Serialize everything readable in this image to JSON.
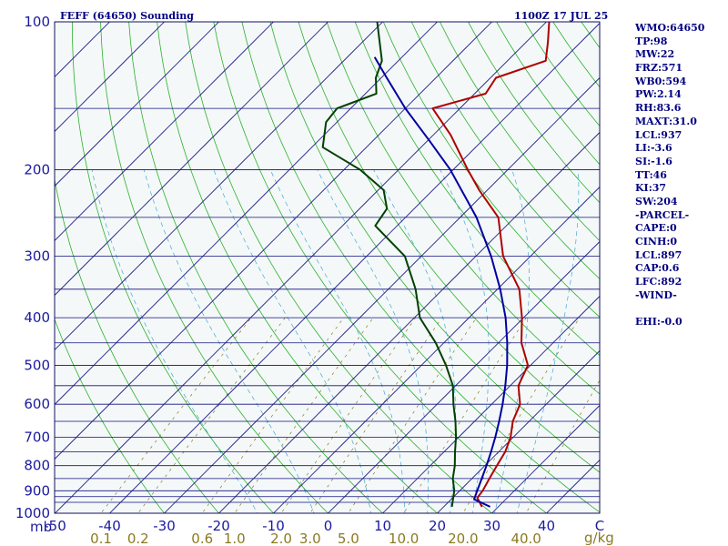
{
  "chart_data": {
    "type": "line",
    "title": "FEFF (64650) Sounding",
    "time_label": "1100Z 17 JUL 25",
    "pressure_unit": "mb",
    "mixing_ratio_unit": "g/kg",
    "pressure_levels": [
      100,
      150,
      200,
      250,
      300,
      350,
      400,
      450,
      500,
      550,
      600,
      650,
      700,
      750,
      800,
      850,
      900,
      925,
      950,
      1000
    ],
    "pressure_tick_labels": [
      "100",
      "200",
      "300",
      "400",
      "500",
      "600",
      "700",
      "800",
      "900",
      "1000"
    ],
    "temperature_ticks": [
      "-50",
      "-40",
      "-30",
      "-20",
      "-10",
      "0",
      "10",
      "20",
      "30",
      "40",
      "C"
    ],
    "mixing_ratio_ticks": [
      "0.1",
      "0.2",
      "0.6",
      "1.0",
      "2.0",
      "3.0",
      "5.0",
      "10.0",
      "20.0",
      "40.0"
    ],
    "xlim": [
      -50,
      47
    ],
    "ylim": [
      1000,
      100
    ],
    "series": [
      {
        "id": "temperature",
        "color": "#b00000",
        "points": [
          {
            "p": 970,
            "t": 27.0
          },
          {
            "p": 930,
            "t": 24.5
          },
          {
            "p": 900,
            "t": 24.2
          },
          {
            "p": 850,
            "t": 23.2
          },
          {
            "p": 800,
            "t": 22.2
          },
          {
            "p": 750,
            "t": 21.2
          },
          {
            "p": 700,
            "t": 19.5
          },
          {
            "p": 650,
            "t": 17.0
          },
          {
            "p": 600,
            "t": 15.2
          },
          {
            "p": 550,
            "t": 11.5
          },
          {
            "p": 500,
            "t": 9.5
          },
          {
            "p": 450,
            "t": 4.2
          },
          {
            "p": 400,
            "t": -0.3
          },
          {
            "p": 350,
            "t": -6.0
          },
          {
            "p": 300,
            "t": -15.0
          },
          {
            "p": 250,
            "t": -23.0
          },
          {
            "p": 220,
            "t": -31.5
          },
          {
            "p": 200,
            "t": -37.3
          },
          {
            "p": 170,
            "t": -46.8
          },
          {
            "p": 150,
            "t": -55.0
          },
          {
            "p": 140,
            "t": -48.0
          },
          {
            "p": 130,
            "t": -49.0
          },
          {
            "p": 120,
            "t": -43.0
          },
          {
            "p": 110,
            "t": -46.0
          },
          {
            "p": 100,
            "t": -49.5
          }
        ]
      },
      {
        "id": "dewpoint",
        "color": "#004000",
        "points": [
          {
            "p": 970,
            "t": 21.5
          },
          {
            "p": 900,
            "t": 19.0
          },
          {
            "p": 850,
            "t": 16.5
          },
          {
            "p": 800,
            "t": 14.5
          },
          {
            "p": 750,
            "t": 12.0
          },
          {
            "p": 700,
            "t": 9.5
          },
          {
            "p": 650,
            "t": 6.5
          },
          {
            "p": 600,
            "t": 3.0
          },
          {
            "p": 550,
            "t": -0.5
          },
          {
            "p": 500,
            "t": -5.5
          },
          {
            "p": 450,
            "t": -11.5
          },
          {
            "p": 400,
            "t": -19.0
          },
          {
            "p": 350,
            "t": -25.0
          },
          {
            "p": 300,
            "t": -33.0
          },
          {
            "p": 260,
            "t": -44.0
          },
          {
            "p": 240,
            "t": -45.0
          },
          {
            "p": 220,
            "t": -49.0
          },
          {
            "p": 200,
            "t": -57.0
          },
          {
            "p": 180,
            "t": -68.0
          },
          {
            "p": 160,
            "t": -72.0
          },
          {
            "p": 150,
            "t": -72.5
          },
          {
            "p": 140,
            "t": -68.0
          },
          {
            "p": 130,
            "t": -71.0
          },
          {
            "p": 120,
            "t": -73.0
          },
          {
            "p": 100,
            "t": -81.0
          }
        ]
      },
      {
        "id": "parcel",
        "color": "#0000a0",
        "points": [
          {
            "p": 970,
            "t": 28.5
          },
          {
            "p": 937,
            "t": 24.2
          },
          {
            "p": 900,
            "t": 23.2
          },
          {
            "p": 850,
            "t": 21.8
          },
          {
            "p": 800,
            "t": 20.3
          },
          {
            "p": 750,
            "t": 18.6
          },
          {
            "p": 700,
            "t": 16.7
          },
          {
            "p": 650,
            "t": 14.5
          },
          {
            "p": 600,
            "t": 12.0
          },
          {
            "p": 550,
            "t": 9.1
          },
          {
            "p": 500,
            "t": 5.7
          },
          {
            "p": 450,
            "t": 1.6
          },
          {
            "p": 400,
            "t": -3.3
          },
          {
            "p": 350,
            "t": -9.5
          },
          {
            "p": 300,
            "t": -17.2
          },
          {
            "p": 250,
            "t": -27.0
          },
          {
            "p": 200,
            "t": -40.5
          },
          {
            "p": 175,
            "t": -49.5
          },
          {
            "p": 150,
            "t": -60.0
          },
          {
            "p": 130,
            "t": -69.0
          },
          {
            "p": 118,
            "t": -75.0
          }
        ]
      }
    ]
  },
  "indices": [
    "WMO:64650",
    "TP:98",
    "MW:22",
    "FRZ:571",
    "WB0:594",
    "PW:2.14",
    "RH:83.6",
    "MAXT:31.0",
    "LCL:937",
    "LI:-3.6",
    "SI:-1.6",
    "TT:46",
    "KI:37",
    "SW:204",
    "-PARCEL-",
    "CAPE:0",
    "CINH:0",
    "LCL:897",
    "CAP:0.6",
    "LFC:892",
    "-WIND-",
    "",
    "EHI:-0.0"
  ]
}
